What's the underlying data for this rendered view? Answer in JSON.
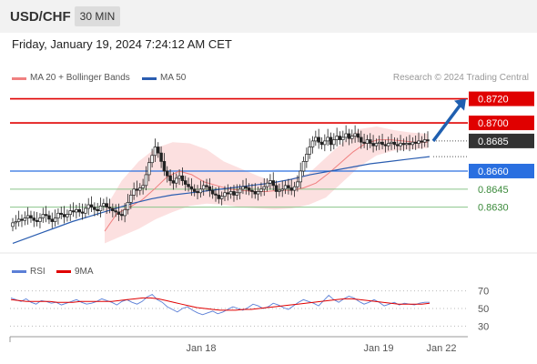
{
  "header": {
    "symbol": "USD/CHF",
    "timeframe": "30 MIN"
  },
  "datetime": "Friday, January 19, 2024 7:24:12 AM CET",
  "credit": "Research © 2024 Trading Central",
  "legend": {
    "ma20": {
      "label": "MA 20 + Bollinger Bands",
      "color": "#f08080"
    },
    "ma50": {
      "label": "MA 50",
      "color": "#2a5db0"
    },
    "rsi": {
      "label": "RSI",
      "color": "#5b7fd6"
    },
    "rsi_ma": {
      "label": "9MA",
      "color": "#e00000"
    }
  },
  "colors": {
    "resistance": "#e00000",
    "support": "#2a6fe0",
    "support_minor": "#8ac48a",
    "current": "#333333",
    "arrow": "#1f5fb0",
    "band": "#fbd5d5"
  },
  "chart_data": [
    {
      "type": "candlestick",
      "ylim": [
        0.8598,
        0.8728
      ],
      "x_ticks": [
        "Jan 18",
        "Jan 19",
        "Jan 22"
      ],
      "levels": [
        {
          "value": 0.872,
          "label": "0.8720",
          "kind": "resistance"
        },
        {
          "value": 0.87,
          "label": "0.8700",
          "kind": "resistance"
        },
        {
          "value": 0.8685,
          "label": "0.8685",
          "kind": "current"
        },
        {
          "value": 0.866,
          "label": "0.8660",
          "kind": "support"
        },
        {
          "value": 0.8645,
          "label": "0.8645",
          "kind": "support_minor"
        },
        {
          "value": 0.863,
          "label": "0.8630",
          "kind": "support_minor"
        }
      ],
      "close_series": [
        0.8617,
        0.8618,
        0.862,
        0.8619,
        0.8621,
        0.8623,
        0.8621,
        0.8619,
        0.8618,
        0.8621,
        0.8624,
        0.8623,
        0.862,
        0.8618,
        0.8621,
        0.8625,
        0.8624,
        0.8622,
        0.8624,
        0.8627,
        0.8626,
        0.8628,
        0.8626,
        0.8625,
        0.8629,
        0.8632,
        0.863,
        0.8628,
        0.8627,
        0.8631,
        0.8633,
        0.863,
        0.8629,
        0.8627,
        0.8626,
        0.8624,
        0.8623,
        0.8628,
        0.8634,
        0.864,
        0.8645,
        0.8644,
        0.8646,
        0.8648,
        0.8657,
        0.8667,
        0.8673,
        0.868,
        0.8675,
        0.8668,
        0.866,
        0.8656,
        0.8652,
        0.865,
        0.8654,
        0.8656,
        0.8652,
        0.8649,
        0.8647,
        0.8645,
        0.8643,
        0.8642,
        0.8645,
        0.8648,
        0.8647,
        0.8644,
        0.8641,
        0.864,
        0.8637,
        0.8639,
        0.8642,
        0.8641,
        0.8643,
        0.864,
        0.8642,
        0.8645,
        0.8647,
        0.8646,
        0.8644,
        0.8643,
        0.8641,
        0.8643,
        0.8645,
        0.8647,
        0.865,
        0.8652,
        0.8648,
        0.8643,
        0.8644,
        0.8645,
        0.8648,
        0.8646,
        0.8644,
        0.8647,
        0.8651,
        0.866,
        0.8668,
        0.8674,
        0.868,
        0.8685,
        0.8688,
        0.8684,
        0.8682,
        0.8685,
        0.8688,
        0.8682,
        0.8686,
        0.8689,
        0.8686,
        0.8688,
        0.8691,
        0.8687,
        0.8689,
        0.8691,
        0.8688,
        0.8684,
        0.8683,
        0.8686,
        0.8683,
        0.8681,
        0.8683,
        0.8684,
        0.8682,
        0.8681,
        0.8683,
        0.8684,
        0.8682,
        0.8681,
        0.8683,
        0.8682,
        0.8683,
        0.8682,
        0.8684,
        0.8683,
        0.8685,
        0.8684,
        0.8686,
        0.8685
      ],
      "ma20_series": [
        0.861,
        0.8625,
        0.863,
        0.8636,
        0.8645,
        0.8655,
        0.866,
        0.8657,
        0.8651,
        0.8648,
        0.8645,
        0.8644,
        0.8643,
        0.8643,
        0.8644,
        0.8644,
        0.8646,
        0.865,
        0.8658,
        0.8667,
        0.8676,
        0.8683,
        0.8686,
        0.8686,
        0.8685,
        0.8684,
        0.8684
      ],
      "ma50_series": [
        0.86,
        0.8606,
        0.8612,
        0.8618,
        0.8623,
        0.8628,
        0.8633,
        0.8637,
        0.864,
        0.8642,
        0.8644,
        0.8646,
        0.8648,
        0.865,
        0.8653,
        0.8657,
        0.866,
        0.8663,
        0.8666,
        0.8668,
        0.867,
        0.8672
      ],
      "bollinger_upper": [
        0.8628,
        0.8652,
        0.8668,
        0.8679,
        0.8684,
        0.8683,
        0.8678,
        0.8668,
        0.8662,
        0.8656,
        0.8651,
        0.8654,
        0.8658,
        0.8671,
        0.8684,
        0.8695,
        0.8697,
        0.8694,
        0.8692,
        0.8691
      ],
      "bollinger_lower": [
        0.86,
        0.8606,
        0.8612,
        0.862,
        0.8626,
        0.8631,
        0.8633,
        0.8632,
        0.863,
        0.8629,
        0.8628,
        0.8629,
        0.8632,
        0.8638,
        0.8651,
        0.8664,
        0.8673,
        0.8677,
        0.8678,
        0.8679
      ],
      "projection": {
        "from": 0.8685,
        "to": 0.872
      }
    },
    {
      "type": "line",
      "title": "RSI",
      "ylim": [
        20,
        80
      ],
      "y_ticks": [
        70,
        50,
        30
      ],
      "series": [
        {
          "name": "RSI",
          "values": [
            62,
            60,
            58,
            61,
            57,
            55,
            59,
            58,
            56,
            57,
            54,
            56,
            58,
            60,
            57,
            55,
            56,
            58,
            61,
            59,
            57,
            54,
            58,
            60,
            57,
            55,
            58,
            63,
            66,
            60,
            57,
            52,
            49,
            46,
            50,
            52,
            48,
            45,
            43,
            45,
            47,
            44,
            46,
            49,
            52,
            50,
            48,
            51,
            55,
            53,
            50,
            52,
            56,
            54,
            51,
            49,
            53,
            57,
            60,
            58,
            56,
            53,
            59,
            65,
            60,
            57,
            61,
            64,
            62,
            58,
            55,
            57,
            60,
            57,
            53,
            55,
            57,
            54,
            56,
            55,
            54,
            56,
            57,
            57
          ]
        },
        {
          "name": "9MA",
          "values": [
            60,
            59,
            58,
            58,
            58,
            58,
            57,
            57,
            57,
            58,
            58,
            58,
            58,
            58,
            59,
            60,
            61,
            62,
            62,
            61,
            59,
            57,
            55,
            53,
            51,
            50,
            49,
            48,
            48,
            48,
            49,
            49,
            50,
            51,
            52,
            53,
            54,
            55,
            56,
            57,
            58,
            59,
            60,
            61,
            61,
            60,
            59,
            58,
            57,
            56,
            55,
            55,
            55,
            55,
            56
          ]
        }
      ]
    }
  ]
}
